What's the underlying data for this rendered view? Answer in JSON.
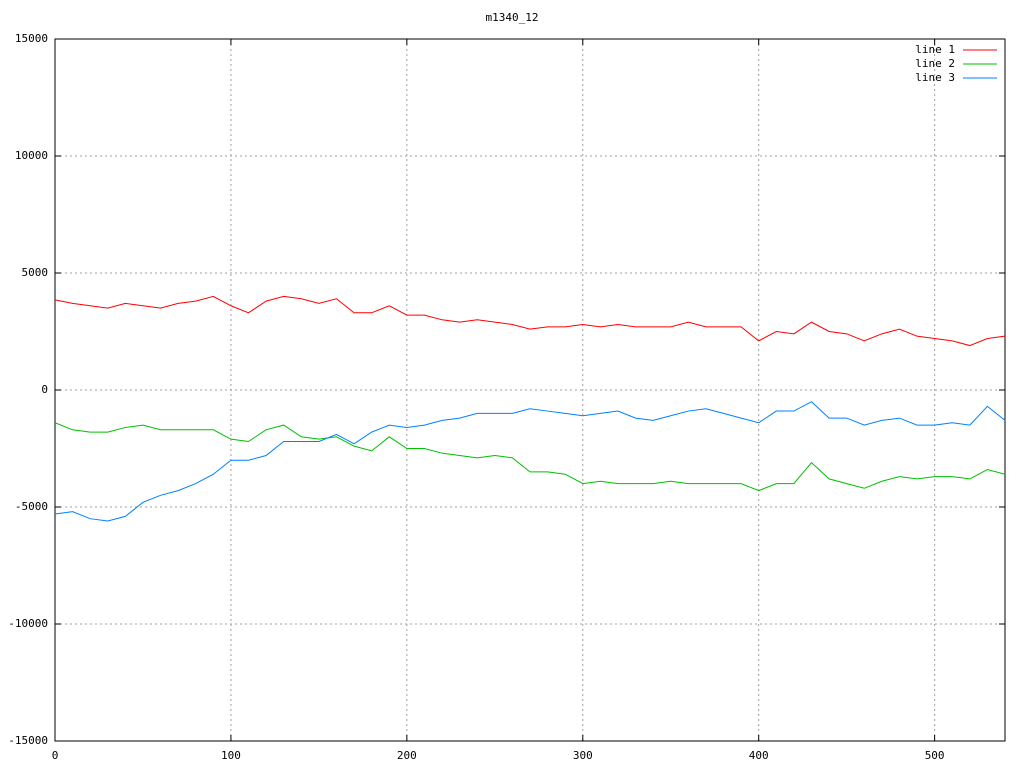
{
  "chart_data": {
    "type": "line",
    "title": "m1340_12",
    "x": [
      0,
      10,
      20,
      30,
      40,
      50,
      60,
      70,
      80,
      90,
      100,
      110,
      120,
      130,
      140,
      150,
      160,
      170,
      180,
      190,
      200,
      210,
      220,
      230,
      240,
      250,
      260,
      270,
      280,
      290,
      300,
      310,
      320,
      330,
      340,
      350,
      360,
      370,
      380,
      390,
      400,
      410,
      420,
      430,
      440,
      450,
      460,
      470,
      480,
      490,
      500,
      510,
      520,
      530,
      540
    ],
    "series": [
      {
        "name": "line 1",
        "color": "#ff0000",
        "values": [
          3850,
          3700,
          3600,
          3500,
          3700,
          3600,
          3500,
          3700,
          3800,
          4000,
          3600,
          3300,
          3800,
          4000,
          3900,
          3700,
          3900,
          3300,
          3300,
          3600,
          3200,
          3200,
          3000,
          2900,
          3000,
          2900,
          2800,
          2600,
          2700,
          2700,
          2800,
          2700,
          2800,
          2700,
          2700,
          2700,
          2900,
          2700,
          2700,
          2700,
          2100,
          2500,
          2400,
          2900,
          2500,
          2400,
          2100,
          2400,
          2600,
          2300,
          2200,
          2100,
          1900,
          2200,
          2300
        ]
      },
      {
        "name": "line 2",
        "color": "#00c000",
        "values": [
          -1400,
          -1700,
          -1800,
          -1800,
          -1600,
          -1500,
          -1700,
          -1700,
          -1700,
          -1700,
          -2100,
          -2200,
          -1700,
          -1500,
          -2000,
          -2100,
          -2000,
          -2400,
          -2600,
          -2000,
          -2500,
          -2500,
          -2700,
          -2800,
          -2900,
          -2800,
          -2900,
          -3500,
          -3500,
          -3600,
          -4000,
          -3900,
          -4000,
          -4000,
          -4000,
          -3900,
          -4000,
          -4000,
          -4000,
          -4000,
          -4300,
          -4000,
          -4000,
          -3100,
          -3800,
          -4000,
          -4200,
          -3900,
          -3700,
          -3800,
          -3700,
          -3700,
          -3800,
          -3400,
          -3600
        ]
      },
      {
        "name": "line 3",
        "color": "#0080ff",
        "values": [
          -5300,
          -5200,
          -5500,
          -5600,
          -5400,
          -4800,
          -4500,
          -4300,
          -4000,
          -3600,
          -3000,
          -3000,
          -2800,
          -2200,
          -2200,
          -2200,
          -1900,
          -2300,
          -1800,
          -1500,
          -1600,
          -1500,
          -1300,
          -1200,
          -1000,
          -1000,
          -1000,
          -800,
          -900,
          -1000,
          -1100,
          -1000,
          -900,
          -1200,
          -1300,
          -1100,
          -900,
          -800,
          -1000,
          -1200,
          -1400,
          -900,
          -900,
          -500,
          -1200,
          -1200,
          -1500,
          -1300,
          -1200,
          -1500,
          -1500,
          -1400,
          -1500,
          -700,
          -1300
        ]
      }
    ],
    "xlim": [
      0,
      540
    ],
    "xticks": [
      0,
      100,
      200,
      300,
      400,
      500
    ],
    "ylim": [
      -15000,
      15000
    ],
    "yticks": [
      -15000,
      -10000,
      -5000,
      0,
      5000,
      10000,
      15000
    ],
    "grid": true,
    "legend": "top-right"
  }
}
